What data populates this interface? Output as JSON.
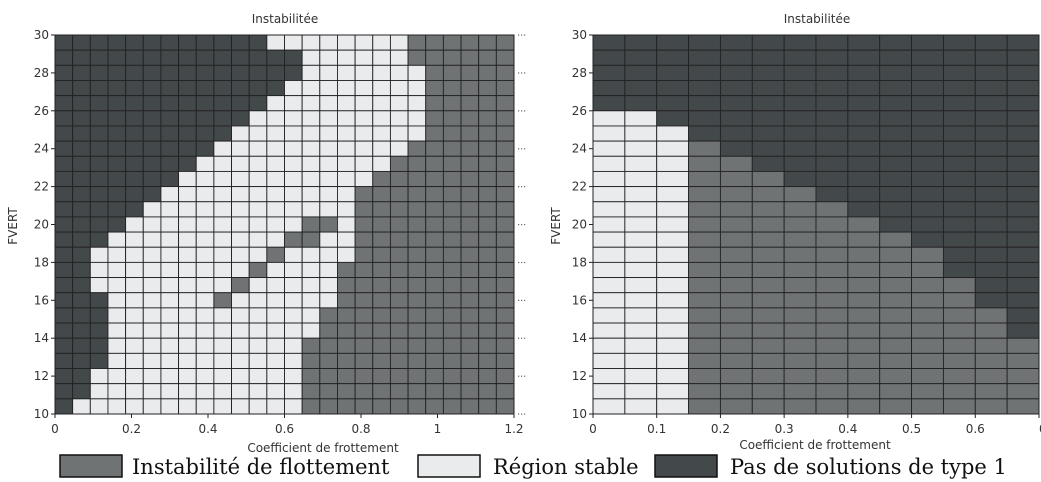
{
  "chart_data": [
    {
      "type": "heatmap",
      "title": "Instabilitée",
      "xlabel": "Coefficient de frottement",
      "ylabel": "FVERT",
      "xlim": [
        0,
        1.2
      ],
      "ylim": [
        10,
        30
      ],
      "xticks": [
        "0",
        "0.2",
        "0.4",
        "0.6",
        "0.8",
        "1",
        "1.2"
      ],
      "yticks": [
        "10",
        "12",
        "14",
        "16",
        "18",
        "20",
        "22",
        "24",
        "26",
        "28",
        "30"
      ],
      "x_step": 0.05,
      "y_step": 1,
      "grid": true,
      "rows": [
        "00000000000011111111222222",
        "00000000000000111111222222",
        "00000000000000111111122222",
        "00000000000001111111122222",
        "00000000000011111111122222",
        "00000000000111111111122222",
        "00000000001111111111122222",
        "00000000011111111111222222",
        "00000000111111111112222222",
        "00000001111111111122222222",
        "00000011111111111222222222",
        "00000111111111111222222222",
        "00001111111111221222222222",
        "00011111111112211222222222",
        "00111111111121111222222222",
        "00111111111211112222222222",
        "00111111112111112222222222",
        "00011111121111112222222222",
        "00011111111111122222222222",
        "00011111111111122222222222",
        "00011111111111222222222222",
        "00011111111111222222222222",
        "00111111111111222222222222",
        "00111111111111222222222222",
        "01111111111111222222222222"
      ]
    },
    {
      "type": "heatmap",
      "title": "Instabilitée",
      "xlabel": "Coefficient de frottement",
      "ylabel": "FVERT",
      "xlim": [
        0,
        0.7
      ],
      "ylim": [
        10,
        30
      ],
      "xticks": [
        "0",
        "0.1",
        "0.2",
        "0.3",
        "0.4",
        "0.5",
        "0.6",
        "0"
      ],
      "yticks": [
        "10",
        "12",
        "14",
        "16",
        "18",
        "20",
        "22",
        "24",
        "26",
        "28",
        "30"
      ],
      "x_step": 0.05,
      "y_step": 1,
      "grid": true,
      "rows": [
        "00000000000000",
        "00000000000000",
        "00000000000000",
        "00000000000000",
        "00000000000000",
        "11000000000000",
        "11100000000000",
        "11120000000000",
        "11122000000000",
        "11122200000000",
        "11122220000000",
        "11122222000000",
        "11122222200000",
        "11122222220000",
        "11122222222000",
        "11122222222000",
        "11122222222200",
        "11122222222200",
        "11122222222220",
        "11122222222220",
        "11122222222222",
        "11122222222222",
        "11122222222222",
        "11122222222222",
        "11122222222222"
      ]
    }
  ],
  "legend": {
    "items": [
      {
        "label": "Instabilité de flottement",
        "color": "#6f7374"
      },
      {
        "label": "Région stable",
        "color": "#e9ebed"
      },
      {
        "label": "Pas de solutions de type 1",
        "color": "#43484a"
      }
    ]
  },
  "colors": {
    "stable": "#e9ebed",
    "instabilite": "#6f7374",
    "pas_solution": "#43484a"
  }
}
